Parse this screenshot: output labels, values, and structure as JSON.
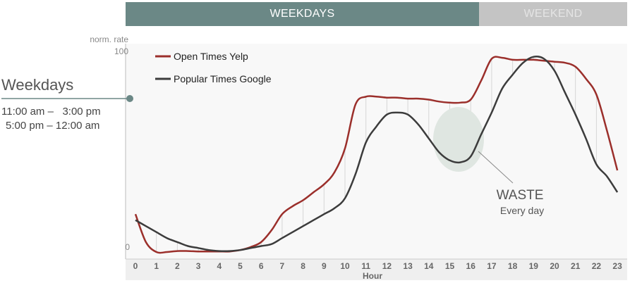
{
  "header": {
    "tabs": [
      {
        "label": "WEEKDAYS",
        "color": "#6b8886"
      },
      {
        "label": "WEEKEND",
        "color": "#c4c4c4"
      }
    ]
  },
  "sidebar": {
    "title": "Weekdays",
    "ranges": [
      "11:00 am –   3:00 pm",
      "5:00 pm – 12:00 am"
    ],
    "marker_color": "#6b8886"
  },
  "annotation": {
    "label": "WASTE",
    "sub": "Every day",
    "highlight_color": "#dfe6e1"
  },
  "chart_data": {
    "type": "line",
    "ylabel": "norm. rate",
    "xlabel": "Hour",
    "ylim": [
      0,
      100
    ],
    "yticks": [
      0,
      100
    ],
    "x": [
      0,
      0.5,
      1,
      1.5,
      2,
      2.5,
      3,
      3.5,
      4,
      4.5,
      5,
      5.5,
      6,
      6.5,
      7,
      7.5,
      8,
      8.5,
      9,
      9.5,
      10,
      10.5,
      11,
      11.5,
      12,
      12.5,
      13,
      13.5,
      14,
      14.5,
      15,
      15.5,
      16,
      16.5,
      17,
      17.5,
      18,
      18.5,
      19,
      19.5,
      20,
      20.5,
      21,
      21.5,
      22,
      22.5,
      23
    ],
    "xticks": [
      0,
      1,
      2,
      3,
      4,
      5,
      6,
      7,
      8,
      9,
      10,
      11,
      12,
      13,
      14,
      15,
      16,
      17,
      18,
      19,
      20,
      21,
      22,
      23
    ],
    "legend": "top-left",
    "grid": false,
    "series": [
      {
        "name": "Open Times Yelp",
        "color": "#9b2f2b",
        "values": [
          19,
          5,
          0,
          0,
          0.5,
          0.5,
          0.3,
          0.3,
          0.3,
          0.3,
          1,
          2.5,
          5,
          11,
          19,
          23,
          26,
          30,
          34,
          40,
          52,
          74,
          78,
          78,
          77.5,
          77.5,
          77,
          77,
          76.5,
          75.5,
          75,
          75,
          76.5,
          86,
          97,
          97.5,
          96.5,
          96.5,
          96.5,
          96,
          95.5,
          95,
          93,
          87,
          79,
          61,
          41
        ]
      },
      {
        "name": "Popular Times Google",
        "color": "#3c3c3c",
        "values": [
          16,
          13,
          10,
          7,
          5,
          3,
          2,
          1,
          0.5,
          0.5,
          1,
          2,
          3,
          4,
          7,
          10,
          13,
          16,
          19,
          22,
          27,
          39,
          55,
          63,
          69,
          70,
          69,
          64,
          57,
          50,
          46,
          45,
          48,
          59,
          70,
          82,
          89,
          95,
          98,
          97,
          91,
          80,
          69,
          57,
          44,
          38,
          30
        ]
      }
    ]
  }
}
